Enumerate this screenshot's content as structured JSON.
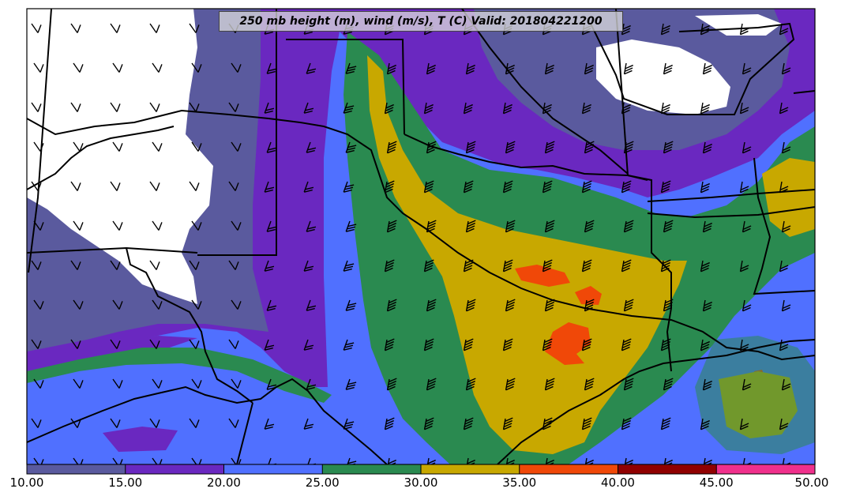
{
  "title": "250 mb height (m), wind (m/s), T (C) Valid: 201804221200",
  "colorbar": {
    "ticks": [
      "10.00",
      "15.00",
      "20.00",
      "25.00",
      "30.00",
      "35.00",
      "40.00",
      "45.00",
      "50.00"
    ],
    "colors": [
      "#5a5a9e",
      "#6a28c0",
      "#5070ff",
      "#2a8a50",
      "#c8a800",
      "#f04808",
      "#900000",
      "#f0308c"
    ]
  },
  "palette": {
    "lt10": "#ffffff",
    "c10_15": "#5a5a9e",
    "c15_20": "#6a28c0",
    "c20_25": "#5070ff",
    "c25_30": "#2a8a50",
    "c30_35": "#c8a800",
    "c35_40": "#f04808"
  }
}
